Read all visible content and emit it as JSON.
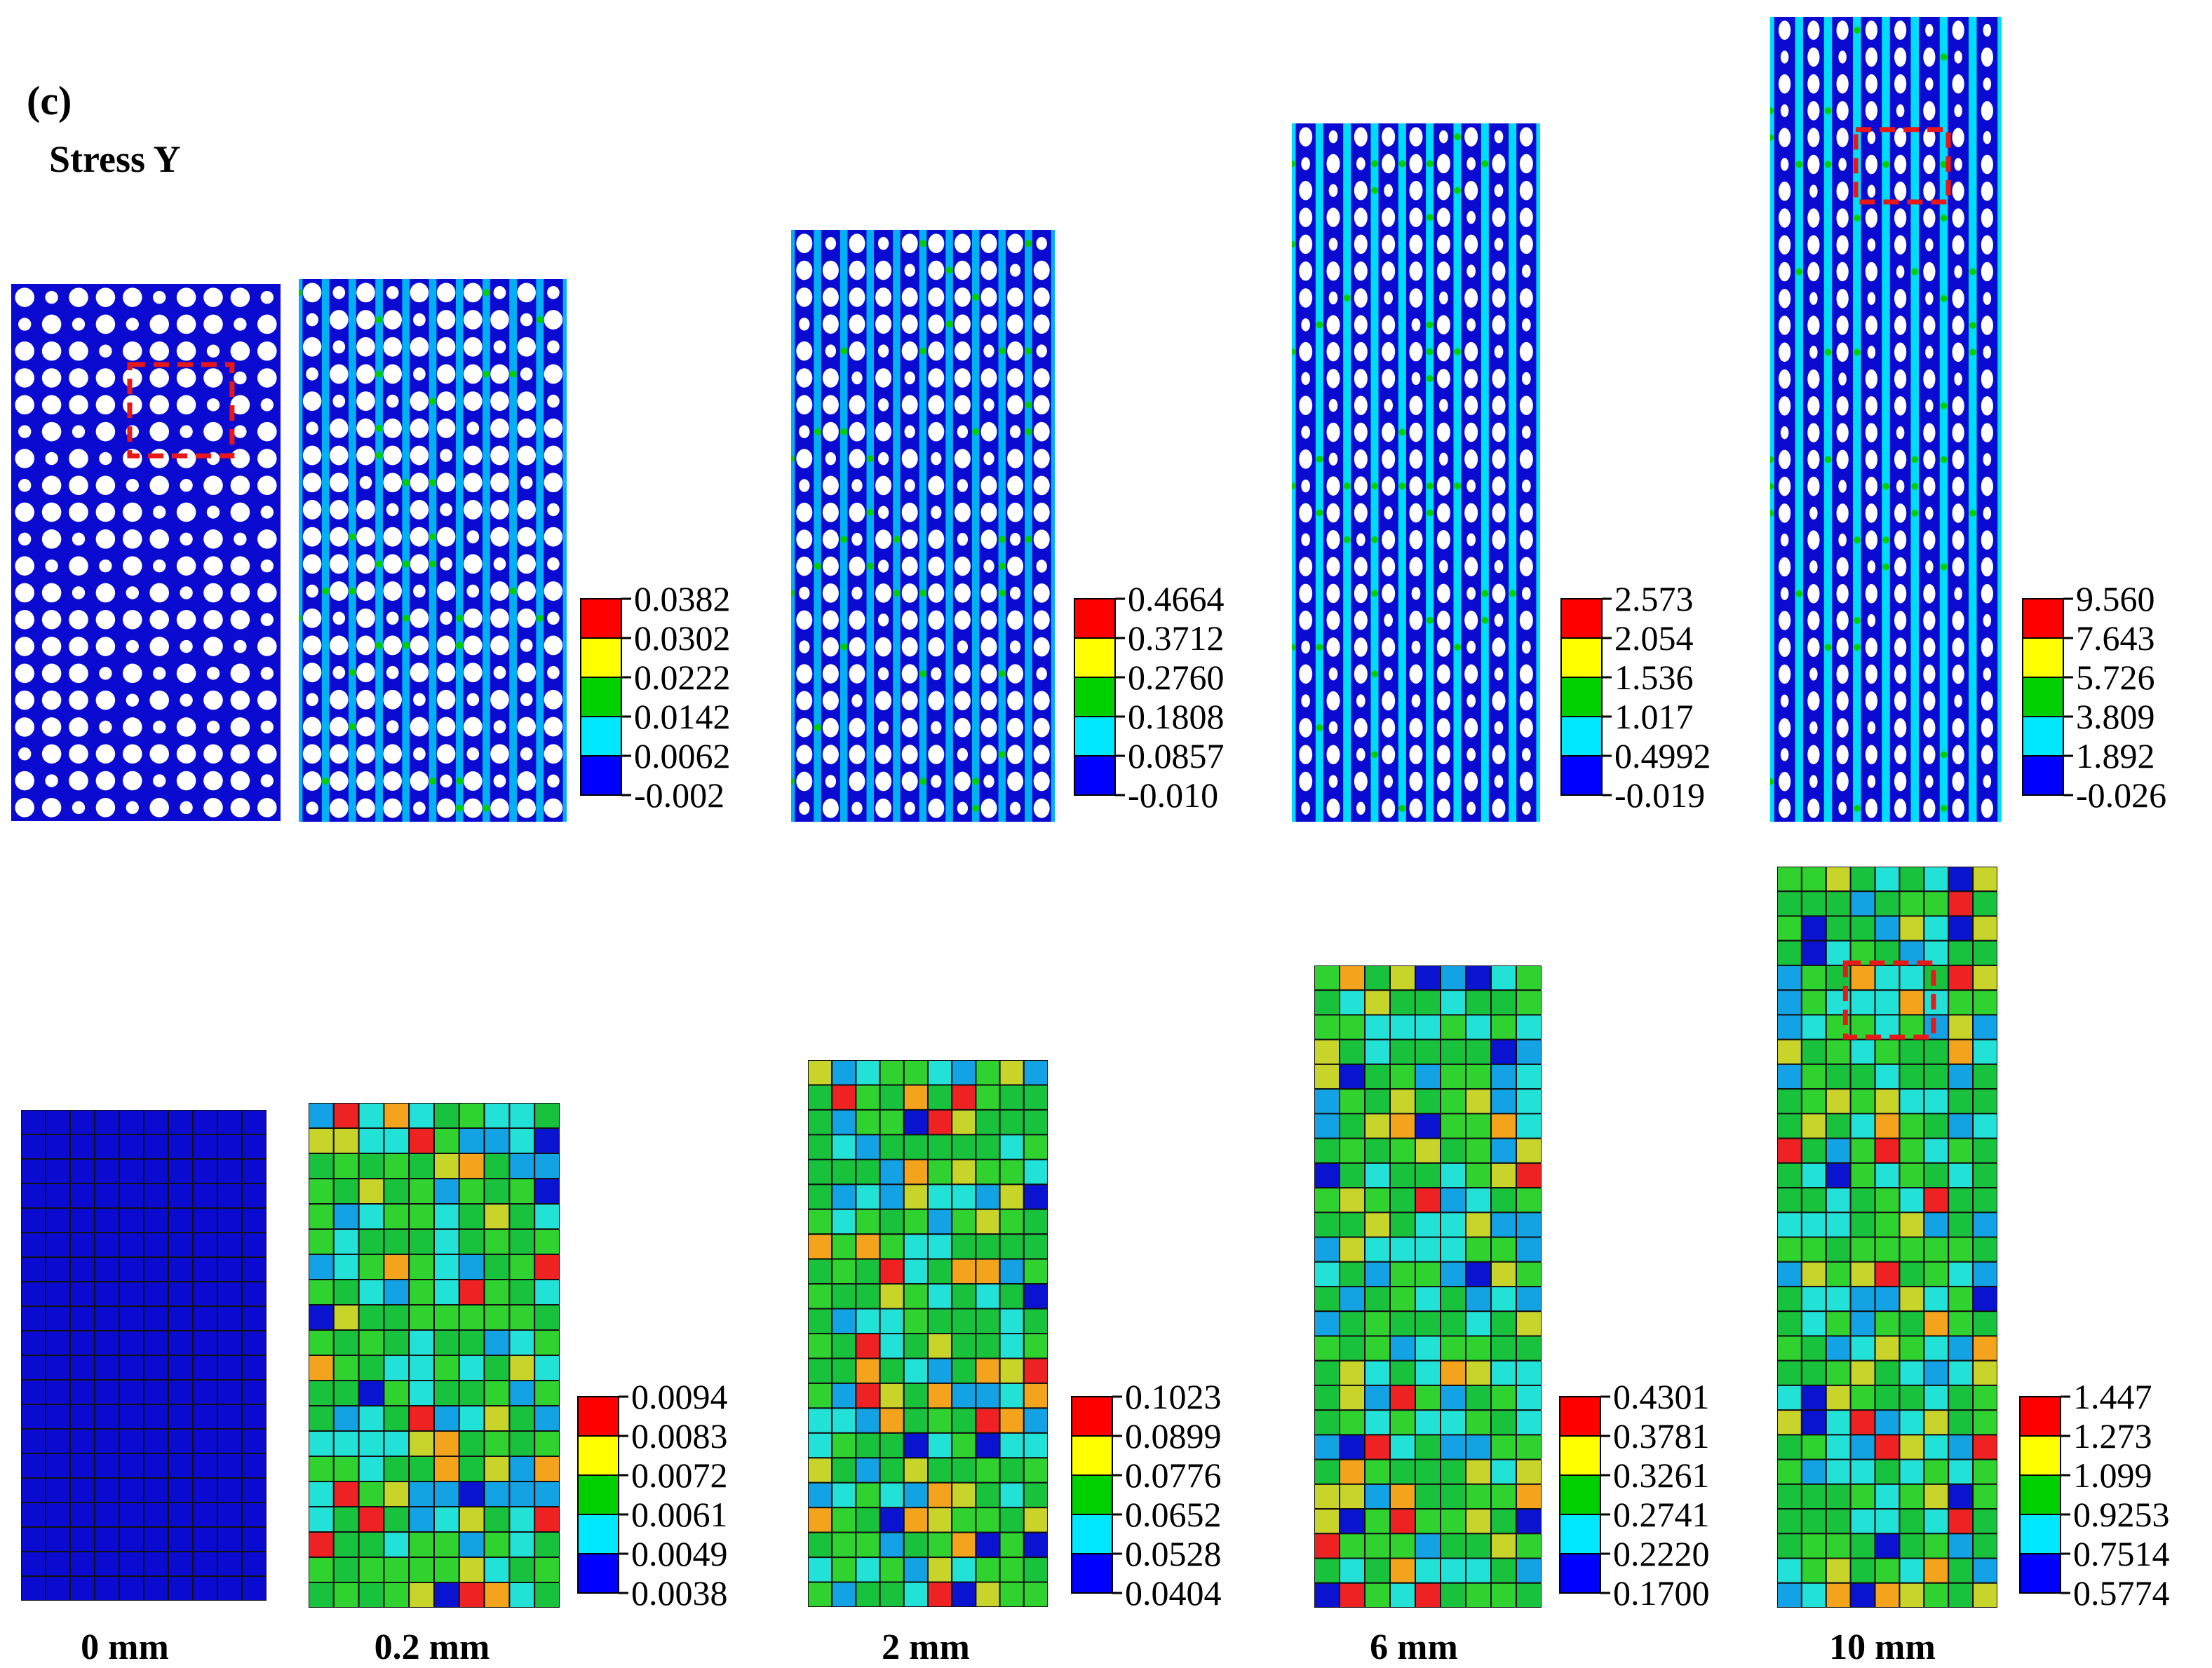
{
  "figure": {
    "panel_label": "(c)",
    "quantity_label": "Stress Y"
  },
  "columns": [
    {
      "label": "0 mm"
    },
    {
      "label": "0.2 mm"
    },
    {
      "label": "2 mm"
    },
    {
      "label": "6 mm"
    },
    {
      "label": "10 mm"
    }
  ],
  "top_legends": [
    [
      "0.0382",
      "0.0302",
      "0.0222",
      "0.0142",
      "0.0062",
      "-0.002"
    ],
    [
      "0.4664",
      "0.3712",
      "0.2760",
      "0.1808",
      "0.0857",
      "-0.010"
    ],
    [
      "2.573",
      "2.054",
      "1.536",
      "1.017",
      "0.4992",
      "-0.019"
    ],
    [
      "9.560",
      "7.643",
      "5.726",
      "3.809",
      "1.892",
      "-0.026"
    ]
  ],
  "bottom_legends": [
    [
      "0.0094",
      "0.0083",
      "0.0072",
      "0.0061",
      "0.0049",
      "0.0038"
    ],
    [
      "0.1023",
      "0.0899",
      "0.0776",
      "0.0652",
      "0.0528",
      "0.0404"
    ],
    [
      "0.4301",
      "0.3781",
      "0.3261",
      "0.2741",
      "0.2220",
      "0.1700"
    ],
    [
      "1.447",
      "1.273",
      "1.099",
      "0.9253",
      "0.7514",
      "0.5774"
    ]
  ],
  "colors": {
    "scale": [
      "#0000ff",
      "#00e8ff",
      "#00d000",
      "#ffff00",
      "#ff0000"
    ],
    "scale_tile": [
      "#0a14d0",
      "#13a2e4",
      "#22e2d8",
      "#18c23c",
      "#2fd22f",
      "#c8d42a",
      "#f4a41c",
      "#ee2222"
    ],
    "matrix_fill": "#0a0ad0",
    "highlight_box": "#e81818"
  }
}
